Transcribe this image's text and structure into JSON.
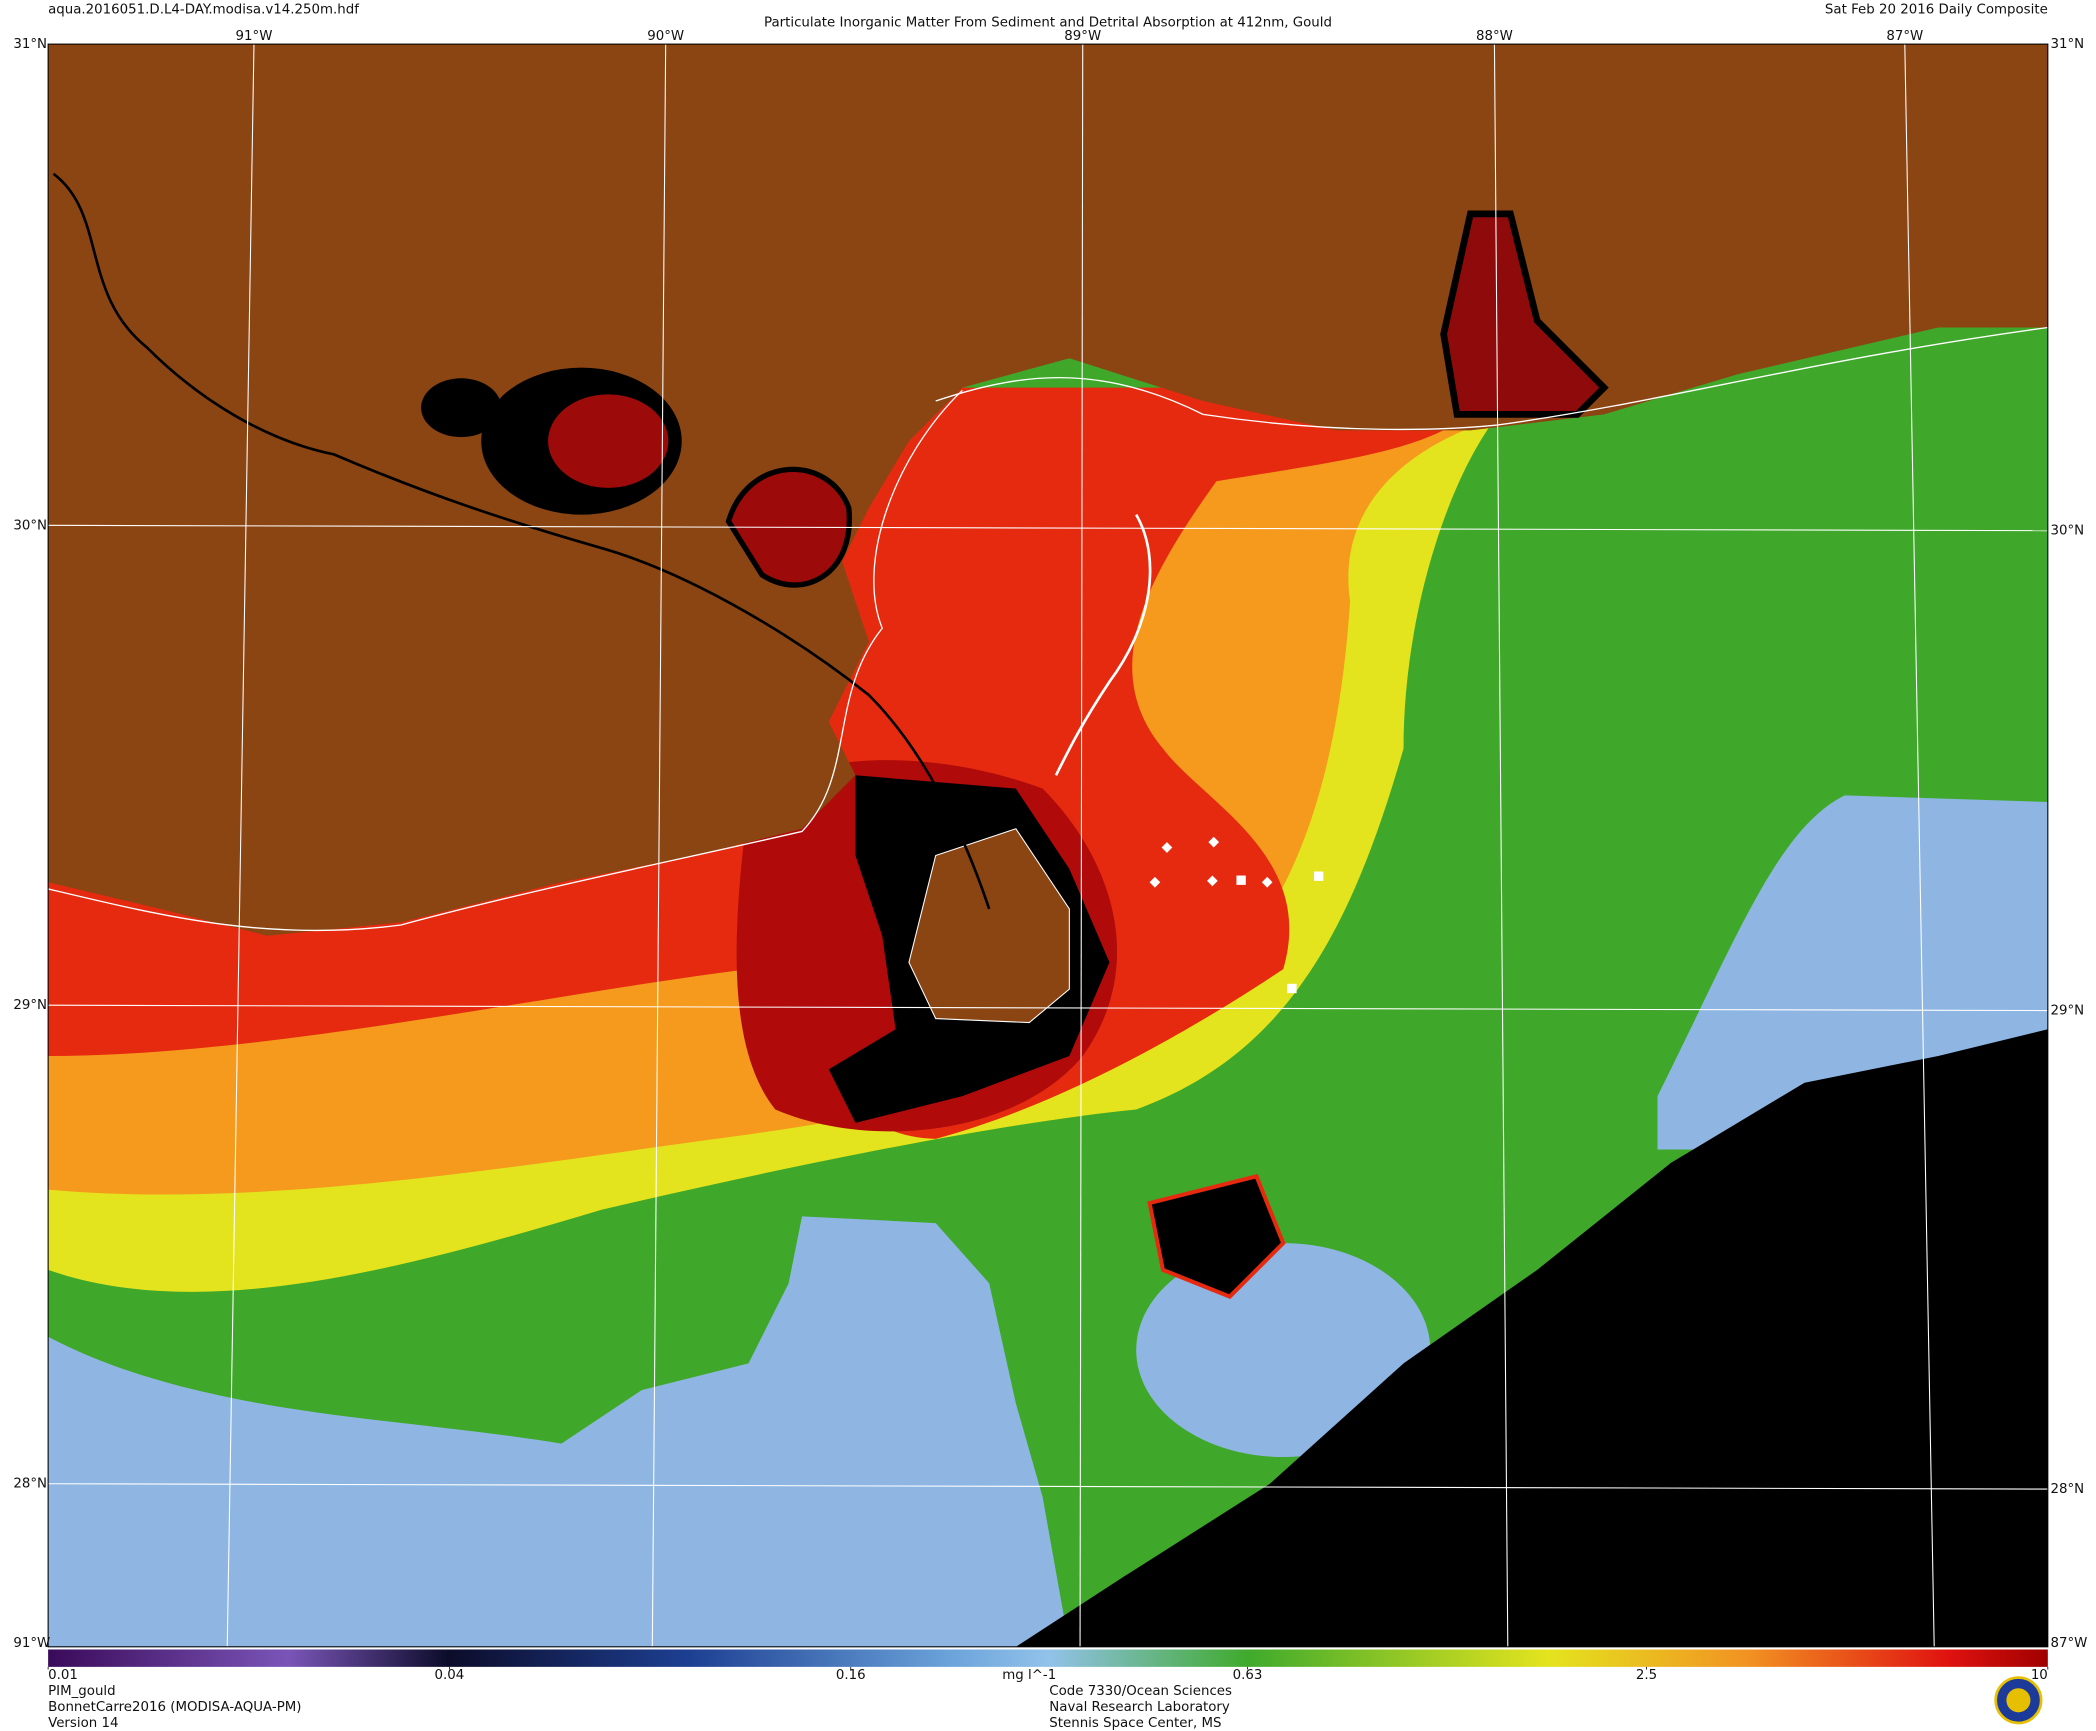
{
  "header": {
    "filename": "aqua.2016051.D.L4-DAY.modisa.v14.250m.hdf",
    "title": "Particulate Inorganic Matter From Sediment and Detrital Absorption at 412nm, Gould",
    "date": "Sat Feb 20 2016 Daily Composite"
  },
  "map": {
    "longitudes": [
      "91°W",
      "90°W",
      "89°W",
      "88°W",
      "87°W"
    ],
    "latitudes": [
      "31°N",
      "30°N",
      "29°N",
      "28°N"
    ]
  },
  "colorbar": {
    "unit": "mg l^-1",
    "range": [
      0.01,
      10
    ],
    "ticks": [
      0.01,
      0.04,
      0.16,
      0.63,
      2.5,
      10
    ],
    "scale": "log"
  },
  "footer": {
    "product": [
      "PIM_gould",
      "BonnetCarre2016 (MODISA-AQUA-PM)",
      "Version 14"
    ],
    "lab": [
      "Code 7330/Ocean Sciences",
      "Naval Research Laboratory",
      "Stennis Space Center, MS"
    ]
  }
}
